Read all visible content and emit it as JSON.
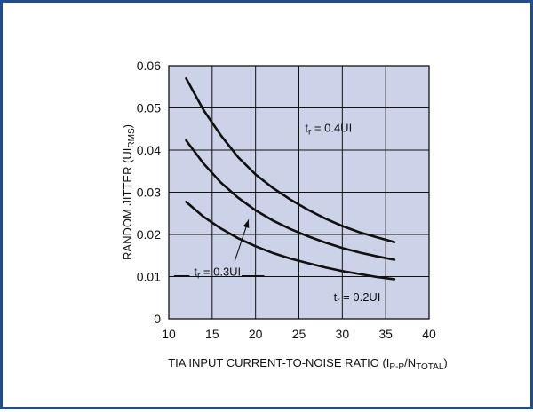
{
  "chart_data": {
    "type": "line",
    "xlabel": "TIA INPUT CURRENT-TO-NOISE RATIO (I",
    "xlabel_sub": "P-P",
    "xlabel_mid": "/N",
    "xlabel_sub2": "TOTAL",
    "xlabel_end": ")",
    "ylabel": "RANDOM JITTER (UI",
    "ylabel_sub": "RMS",
    "ylabel_end": ")",
    "xlim": [
      10,
      40
    ],
    "ylim": [
      0,
      0.06
    ],
    "x_ticks": [
      "10",
      "15",
      "20",
      "25",
      "30",
      "35",
      "40"
    ],
    "x_tick_values": [
      10,
      15,
      20,
      25,
      30,
      35,
      40
    ],
    "y_ticks": [
      "0",
      "0.01",
      "0.02",
      "0.03",
      "0.04",
      "0.05",
      "0.06"
    ],
    "y_tick_values": [
      0,
      0.01,
      0.02,
      0.03,
      0.04,
      0.05,
      0.06
    ],
    "grid": true,
    "plot_background": "#ccd3e8",
    "line_color": "#111111",
    "series": [
      {
        "id": "tr-0.4UI",
        "x": [
          12,
          14,
          16,
          18,
          20,
          22,
          24,
          26,
          28,
          30,
          32,
          34,
          36
        ],
        "y": [
          0.057,
          0.0495,
          0.0435,
          0.0383,
          0.0342,
          0.031,
          0.0283,
          0.0259,
          0.0238,
          0.022,
          0.0205,
          0.0193,
          0.0182
        ]
      },
      {
        "id": "tr-0.3UI",
        "x": [
          12,
          14,
          16,
          18,
          20,
          22,
          24,
          26,
          28,
          30,
          32,
          34,
          36
        ],
        "y": [
          0.0423,
          0.0368,
          0.0323,
          0.0287,
          0.0257,
          0.0233,
          0.0213,
          0.0196,
          0.0181,
          0.0168,
          0.0157,
          0.0148,
          0.014
        ]
      },
      {
        "id": "tr-0.2UI",
        "x": [
          12,
          14,
          16,
          18,
          20,
          22,
          24,
          26,
          28,
          30,
          32,
          34,
          36
        ],
        "y": [
          0.0277,
          0.0242,
          0.0214,
          0.0191,
          0.0172,
          0.0156,
          0.0143,
          0.0132,
          0.0122,
          0.0113,
          0.0106,
          0.0099,
          0.0094
        ]
      }
    ],
    "annotations": [
      {
        "id": "label-0.4",
        "t": "t",
        "sub": "r",
        "rest": " = 0.4UI",
        "x": 25.7,
        "y": 0.0443
      },
      {
        "id": "label-0.3",
        "t": "t",
        "sub": "r",
        "rest": " = 0.3UI",
        "x": 12.9,
        "y": 0.0102
      },
      {
        "id": "label-0.2",
        "t": "t",
        "sub": "r",
        "rest": " = 0.2UI",
        "x": 29.0,
        "y": 0.0042
      }
    ],
    "arrow": {
      "from": [
        17.6,
        0.0137
      ],
      "to": [
        19.2,
        0.0235
      ]
    },
    "leader_line": {
      "from": [
        10.6,
        0.0102
      ],
      "to": [
        12.4,
        0.0102
      ],
      "from2": [
        18.4,
        0.0102
      ],
      "to2": [
        21.0,
        0.0102
      ]
    }
  }
}
